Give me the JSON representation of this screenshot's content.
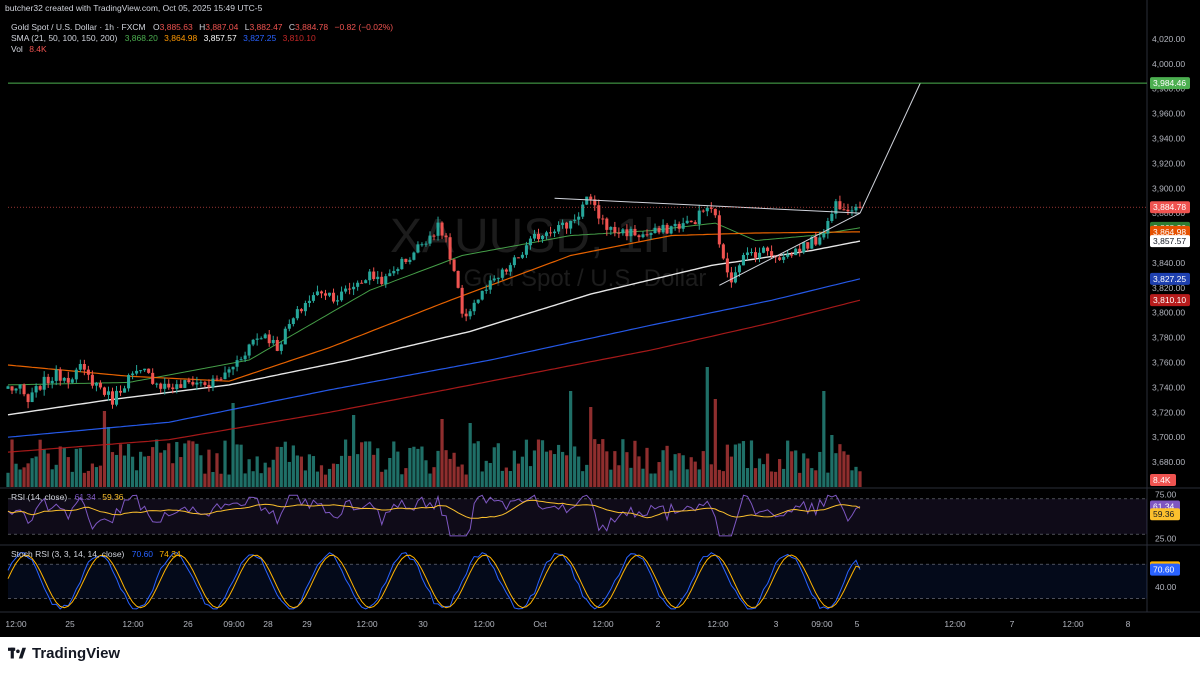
{
  "header": {
    "credit": "butcher32 created with TradingView.com, Oct 05, 2025 15:49 UTC-5"
  },
  "legend": {
    "symbol": "Gold Spot / U.S. Dollar · 1h · FXCM",
    "o_label": "O",
    "o_value": "3,885.63",
    "h_label": "H",
    "h_value": "3,887.04",
    "l_label": "L",
    "l_value": "3,882.47",
    "c_label": "C",
    "c_value": "3,884.78",
    "change": "−0.82 (−0.02%)",
    "sma_label": "SMA (21, 50, 100, 150, 200)",
    "sma_values": [
      "3,868.20",
      "3,864.98",
      "3,857.57",
      "3,827.25",
      "3,810.10"
    ],
    "vol_label": "Vol",
    "vol_value": "8.4K",
    "rsi_label": "RSI (14, close)",
    "rsi_values": [
      "61.34",
      "59.36"
    ],
    "stoch_label": "Stoch RSI (3, 3, 14, 14, close)",
    "stoch_values": [
      "70.60",
      "74.34"
    ]
  },
  "watermark": {
    "ticker": "XAUUSD, 1h",
    "name": "Gold Spot / U.S. Dollar"
  },
  "brand": "TradingView",
  "colors": {
    "background": "#000000",
    "up": "#26a69a",
    "down": "#ef5350",
    "sma21": "#4caf50",
    "sma50": "#ff6d00",
    "sma100": "#ffffff",
    "sma150": "#2962ff",
    "sma200": "#b71c1c",
    "rsi": "#7e57c2",
    "rsi_ma": "#fbc02d",
    "stoch_k": "#2962ff",
    "stoch_d": "#ffb300",
    "target": "#4caf50"
  },
  "chart_data": {
    "type": "candlestick",
    "symbol": "XAUUSD",
    "interval": "1h",
    "ylim": [
      3660,
      4040
    ],
    "y_ticks": [
      "4,020.00",
      "4,000.00",
      "3,980.00",
      "3,960.00",
      "3,940.00",
      "3,920.00",
      "3,900.00",
      "3,880.00",
      "3,860.00",
      "3,840.00",
      "3,820.00",
      "3,800.00",
      "3,780.00",
      "3,760.00",
      "3,740.00",
      "3,720.00",
      "3,700.00",
      "3,680.00"
    ],
    "y_tick_values": [
      4020,
      4000,
      3980,
      3960,
      3940,
      3920,
      3900,
      3880,
      3860,
      3840,
      3820,
      3800,
      3780,
      3760,
      3740,
      3720,
      3700,
      3680
    ],
    "x_ticks": [
      "12:00",
      "25",
      "12:00",
      "26",
      "09:00",
      "28",
      "29",
      "12:00",
      "30",
      "12:00",
      "Oct",
      "12:00",
      "2",
      "12:00",
      "3",
      "09:00",
      "5",
      "12:00",
      "7",
      "12:00",
      "8"
    ],
    "price_labels": [
      {
        "text": "3,984.46",
        "value": 3984.46,
        "color": "#4caf50"
      },
      {
        "text": "3,884.78",
        "value": 3884.78,
        "color": "#ef5350"
      },
      {
        "text": "3,868.20",
        "value": 3868.2,
        "color": "#2e7d32"
      },
      {
        "text": "3,864.98",
        "value": 3864.98,
        "color": "#e65100"
      },
      {
        "text": "3,857.57",
        "value": 3857.57,
        "color": "#ffffff"
      },
      {
        "text": "3,827.25",
        "value": 3827.25,
        "color": "#1e40af"
      },
      {
        "text": "3,810.10",
        "value": 3810.1,
        "color": "#b71c1c"
      }
    ],
    "target_level": 3984.46,
    "last_price": 3884.78,
    "close_anchors": [
      [
        0,
        3740
      ],
      [
        3,
        3738
      ],
      [
        5,
        3728
      ],
      [
        8,
        3742
      ],
      [
        12,
        3750
      ],
      [
        15,
        3748
      ],
      [
        18,
        3755
      ],
      [
        20,
        3748
      ],
      [
        23,
        3740
      ],
      [
        26,
        3730
      ],
      [
        30,
        3748
      ],
      [
        34,
        3752
      ],
      [
        38,
        3742
      ],
      [
        42,
        3740
      ],
      [
        46,
        3745
      ],
      [
        50,
        3742
      ],
      [
        54,
        3750
      ],
      [
        58,
        3765
      ],
      [
        61,
        3778
      ],
      [
        64,
        3783
      ],
      [
        67,
        3772
      ],
      [
        70,
        3790
      ],
      [
        74,
        3808
      ],
      [
        78,
        3818
      ],
      [
        82,
        3812
      ],
      [
        86,
        3822
      ],
      [
        90,
        3830
      ],
      [
        94,
        3826
      ],
      [
        97,
        3838
      ],
      [
        100,
        3845
      ],
      [
        104,
        3860
      ],
      [
        107,
        3868
      ],
      [
        109,
        3860
      ],
      [
        110,
        3842
      ],
      [
        112,
        3818
      ],
      [
        113,
        3795
      ],
      [
        116,
        3808
      ],
      [
        120,
        3822
      ],
      [
        124,
        3834
      ],
      [
        128,
        3848
      ],
      [
        131,
        3860
      ],
      [
        135,
        3868
      ],
      [
        139,
        3870
      ],
      [
        142,
        3880
      ],
      [
        144,
        3892
      ],
      [
        147,
        3878
      ],
      [
        150,
        3866
      ],
      [
        154,
        3865
      ],
      [
        158,
        3862
      ],
      [
        162,
        3865
      ],
      [
        166,
        3870
      ],
      [
        170,
        3872
      ],
      [
        174,
        3885
      ],
      [
        176,
        3876
      ],
      [
        178,
        3840
      ],
      [
        180,
        3828
      ],
      [
        182,
        3842
      ],
      [
        185,
        3848
      ],
      [
        189,
        3850
      ],
      [
        193,
        3844
      ],
      [
        197,
        3852
      ],
      [
        201,
        3858
      ],
      [
        204,
        3872
      ],
      [
        206,
        3888
      ],
      [
        209,
        3886
      ],
      [
        212,
        3884.78
      ]
    ],
    "sma_series": [
      {
        "name": "SMA 21",
        "points": [
          [
            0,
            3742
          ],
          [
            30,
            3744
          ],
          [
            60,
            3762
          ],
          [
            90,
            3818
          ],
          [
            113,
            3846
          ],
          [
            140,
            3862
          ],
          [
            160,
            3866
          ],
          [
            176,
            3872
          ],
          [
            186,
            3858
          ],
          [
            200,
            3862
          ],
          [
            212,
            3868.2
          ]
        ]
      },
      {
        "name": "SMA 50",
        "points": [
          [
            0,
            3758
          ],
          [
            30,
            3749
          ],
          [
            55,
            3745
          ],
          [
            80,
            3772
          ],
          [
            110,
            3810
          ],
          [
            140,
            3846
          ],
          [
            165,
            3862
          ],
          [
            185,
            3864
          ],
          [
            212,
            3864.98
          ]
        ]
      },
      {
        "name": "SMA 100",
        "points": [
          [
            0,
            3718
          ],
          [
            25,
            3730
          ],
          [
            55,
            3742
          ],
          [
            85,
            3762
          ],
          [
            115,
            3785
          ],
          [
            145,
            3815
          ],
          [
            175,
            3838
          ],
          [
            200,
            3850
          ],
          [
            212,
            3857.57
          ]
        ]
      },
      {
        "name": "SMA 150",
        "points": [
          [
            0,
            3700
          ],
          [
            40,
            3712
          ],
          [
            80,
            3738
          ],
          [
            120,
            3762
          ],
          [
            160,
            3790
          ],
          [
            190,
            3810
          ],
          [
            212,
            3827.25
          ]
        ]
      },
      {
        "name": "SMA 200",
        "points": [
          [
            0,
            3688
          ],
          [
            40,
            3698
          ],
          [
            80,
            3720
          ],
          [
            120,
            3745
          ],
          [
            160,
            3770
          ],
          [
            190,
            3792
          ],
          [
            212,
            3810.1
          ]
        ]
      }
    ],
    "projection": [
      [
        212,
        3880
      ],
      [
        227,
        3984.46
      ]
    ],
    "triangle_upper": [
      [
        136,
        3892
      ],
      [
        212,
        3880
      ]
    ],
    "triangle_lower": [
      [
        177,
        3822
      ],
      [
        212,
        3880
      ]
    ],
    "volume_max_k": 30,
    "volume_spikes": [
      [
        24,
        19
      ],
      [
        25,
        15
      ],
      [
        56,
        21
      ],
      [
        86,
        18
      ],
      [
        108,
        17
      ],
      [
        115,
        16
      ],
      [
        140,
        24
      ],
      [
        145,
        20
      ],
      [
        174,
        30
      ],
      [
        176,
        22
      ],
      [
        203,
        24
      ],
      [
        205,
        13
      ]
    ],
    "rsi": {
      "ylim": [
        20,
        80
      ],
      "ticks": [
        "75.00",
        "25.00"
      ],
      "tick_values": [
        75,
        25
      ],
      "band": [
        30,
        70
      ],
      "last": [
        61.34,
        59.36
      ]
    },
    "stoch": {
      "ylim": [
        0,
        110
      ],
      "ticks": [
        "40.00"
      ],
      "tick_values": [
        40
      ],
      "band": [
        20,
        80
      ],
      "last": [
        70.6,
        74.34
      ]
    }
  }
}
